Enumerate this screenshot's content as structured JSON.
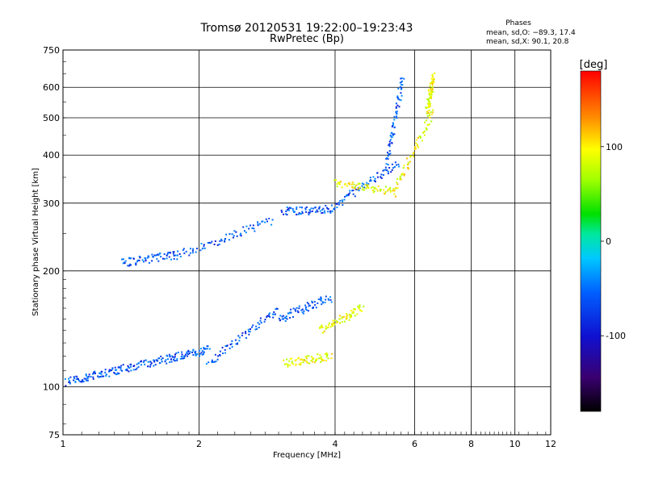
{
  "chart_data": {
    "type": "scatter",
    "title": "Tromsø 20120531 19:22:00–19:23:43",
    "subtitle": "RwPretec (Bp)",
    "xlabel": "Frequency [MHz]",
    "ylabel": "Stationary phase Virtual Height [km]",
    "x_scale": "log",
    "y_scale": "log",
    "xlim": [
      1,
      12
    ],
    "ylim": [
      75,
      750
    ],
    "x_ticks": [
      1,
      2,
      4,
      6,
      8,
      10,
      12
    ],
    "y_ticks": [
      75,
      100,
      200,
      300,
      400,
      500,
      600,
      750
    ],
    "grid": true,
    "phases": {
      "header": "Phases",
      "line1": "mean, sd,O: −89.3, 17.4",
      "line2": "mean, sd,X:  90.1, 20.8"
    },
    "colorbar": {
      "label": "[deg]",
      "range": [
        -180,
        180
      ],
      "ticks": [
        100,
        0,
        -100
      ],
      "colormap": "rainbow"
    },
    "series": [
      {
        "phase": "O",
        "description_values_deg": -90,
        "segments": [
          {
            "f_start": 1.02,
            "f_end": 1.3,
            "h_start": 103,
            "h_end": 110
          },
          {
            "f_start": 1.3,
            "f_end": 1.7,
            "h_start": 110,
            "h_end": 118
          },
          {
            "f_start": 1.7,
            "f_end": 2.1,
            "h_start": 118,
            "h_end": 125
          },
          {
            "f_start": 2.1,
            "f_end": 3.0,
            "h_start": 115,
            "h_end": 160
          },
          {
            "f_start": 3.0,
            "f_end": 3.9,
            "h_start": 150,
            "h_end": 170
          },
          {
            "f_start": 1.35,
            "f_end": 1.8,
            "h_start": 210,
            "h_end": 220
          },
          {
            "f_start": 1.8,
            "f_end": 2.9,
            "h_start": 220,
            "h_end": 270
          },
          {
            "f_start": 3.05,
            "f_end": 4.0,
            "h_start": 285,
            "h_end": 290
          },
          {
            "f_start": 4.0,
            "f_end": 5.5,
            "h_start": 295,
            "h_end": 380
          },
          {
            "f_start": 5.2,
            "f_end": 5.65,
            "h_start": 380,
            "h_end": 640
          }
        ]
      },
      {
        "phase": "X",
        "description_values_deg": 90,
        "segments": [
          {
            "f_start": 3.1,
            "f_end": 3.9,
            "h_start": 115,
            "h_end": 120
          },
          {
            "f_start": 3.7,
            "f_end": 4.6,
            "h_start": 140,
            "h_end": 160
          },
          {
            "f_start": 4.0,
            "f_end": 5.4,
            "h_start": 340,
            "h_end": 320
          },
          {
            "f_start": 5.4,
            "f_end": 6.6,
            "h_start": 320,
            "h_end": 520
          },
          {
            "f_start": 6.4,
            "f_end": 6.6,
            "h_start": 520,
            "h_end": 640
          }
        ]
      }
    ]
  }
}
